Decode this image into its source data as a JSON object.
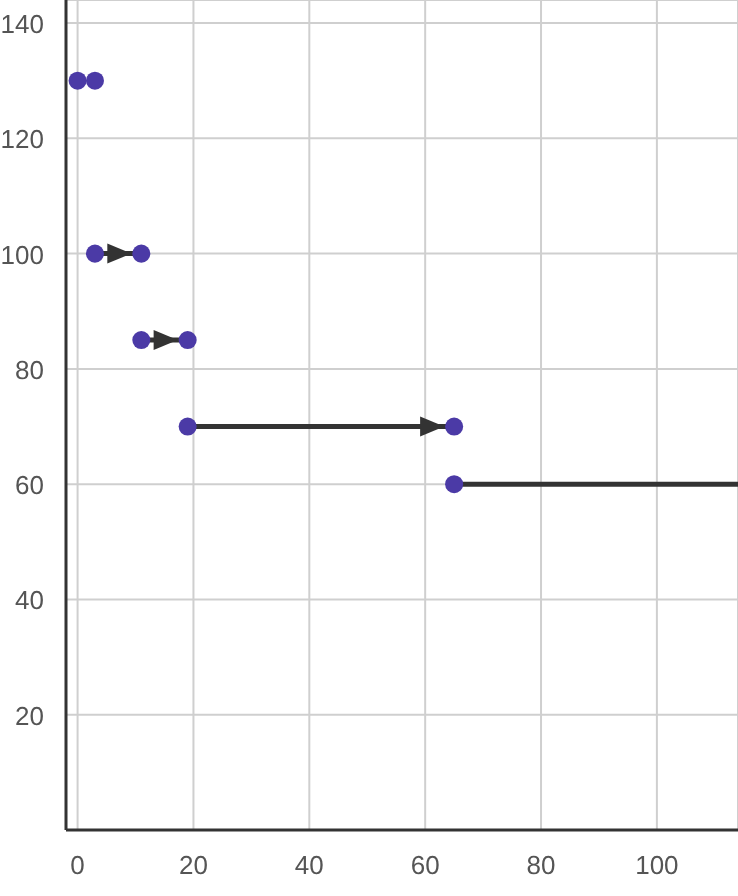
{
  "chart_data": {
    "type": "scatter",
    "xlim": [
      -2,
      114
    ],
    "ylim": [
      0,
      144
    ],
    "xticks": [
      0,
      20,
      40,
      60,
      80,
      100
    ],
    "yticks": [
      {
        "value": 0,
        "label": null
      },
      20,
      40,
      60,
      80,
      100,
      120,
      140
    ],
    "grid": true,
    "legend": false,
    "series": [
      {
        "type": "line",
        "color": "#333333",
        "x": [
          3,
          11
        ],
        "values": [
          100,
          100
        ],
        "marker": "none"
      },
      {
        "type": "line",
        "color": "#333333",
        "x": [
          11,
          19
        ],
        "values": [
          85,
          85
        ],
        "marker": "none"
      },
      {
        "type": "line",
        "color": "#333333",
        "x": [
          19,
          65
        ],
        "values": [
          70,
          70
        ],
        "marker": "none"
      },
      {
        "type": "line",
        "color": "#333333",
        "x": [
          65,
          114
        ],
        "values": [
          60,
          60
        ],
        "marker": "none"
      },
      {
        "color": "#4b3aa6",
        "x": [
          0,
          3,
          3,
          11,
          11,
          19,
          19,
          65,
          65
        ],
        "values": [
          130,
          130,
          100,
          100,
          85,
          85,
          70,
          70,
          60
        ],
        "marker": "circle"
      }
    ]
  }
}
